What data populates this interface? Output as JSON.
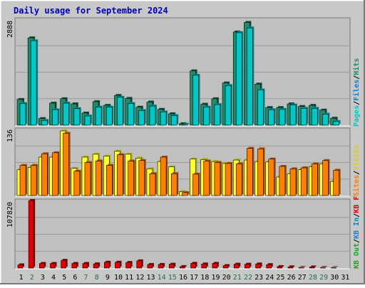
{
  "title": "Daily usage for September 2024",
  "colors": {
    "background": "#c8c8c8",
    "border_light": "#ffffff",
    "border_dark": "#7a7a7a",
    "plot_bg": "#c0c0c0",
    "grid": "#9a9a9a",
    "title": "#0000b4",
    "pages": "#00c8c8",
    "pages_side": "#008a8a",
    "files": "#1080d0",
    "hits": "#208a6a",
    "visits": "#ffff30",
    "visits_side": "#b0b000",
    "sites": "#ff8000",
    "sites_side": "#a05000",
    "kbf": "#e00000",
    "kbf_side": "#800000",
    "kbin": "#1080d0",
    "kbout": "#20a020",
    "weekend_label": "#207050",
    "weekday_label": "#000000"
  },
  "chart_data": [
    {
      "type": "bar",
      "panel": "top",
      "y_max_label": "2888",
      "ylim": [
        0,
        2888
      ],
      "legend": [
        "Pages",
        "Files",
        "Hits"
      ],
      "legend_colors": [
        "#00c8c8",
        "#1080d0",
        "#208a6a"
      ],
      "categories": [
        "1",
        "2",
        "3",
        "4",
        "5",
        "6",
        "7",
        "8",
        "9",
        "10",
        "11",
        "12",
        "13",
        "14",
        "15",
        "16",
        "17",
        "18",
        "19",
        "20",
        "21",
        "22",
        "23",
        "24",
        "25",
        "26",
        "27",
        "28",
        "29",
        "30",
        "31"
      ],
      "series": [
        {
          "name": "Hits",
          "values": [
            700,
            2380,
            180,
            600,
            720,
            580,
            330,
            640,
            540,
            810,
            730,
            490,
            630,
            430,
            310,
            40,
            1480,
            570,
            720,
            1150,
            2540,
            2800,
            1120,
            480,
            480,
            580,
            510,
            540,
            410,
            190,
            0
          ]
        },
        {
          "name": "Files",
          "values": [
            0,
            0,
            0,
            0,
            0,
            0,
            0,
            0,
            0,
            0,
            0,
            0,
            0,
            0,
            0,
            0,
            0,
            0,
            0,
            0,
            0,
            0,
            0,
            0,
            0,
            0,
            0,
            0,
            0,
            0,
            0
          ]
        },
        {
          "name": "Pages",
          "values": [
            590,
            2300,
            130,
            420,
            600,
            450,
            250,
            490,
            490,
            760,
            590,
            400,
            520,
            360,
            260,
            25,
            1360,
            490,
            560,
            1080,
            2520,
            2650,
            960,
            420,
            430,
            550,
            460,
            460,
            300,
            100,
            0
          ]
        }
      ]
    },
    {
      "type": "bar",
      "panel": "middle",
      "y_max_label": "136",
      "ylim": [
        0,
        136
      ],
      "legend": [
        "Visits",
        "Sites"
      ],
      "legend_colors": [
        "#ffff30",
        "#ff8000"
      ],
      "categories": [
        "1",
        "2",
        "3",
        "4",
        "5",
        "6",
        "7",
        "8",
        "9",
        "10",
        "11",
        "12",
        "13",
        "14",
        "15",
        "16",
        "17",
        "18",
        "19",
        "20",
        "21",
        "22",
        "23",
        "24",
        "25",
        "26",
        "27",
        "28",
        "29",
        "30",
        "31"
      ],
      "series": [
        {
          "name": "Visits",
          "values": [
            53,
            58,
            79,
            79,
            133,
            56,
            79,
            85,
            81,
            91,
            85,
            77,
            55,
            70,
            59,
            8,
            75,
            74,
            70,
            66,
            73,
            73,
            70,
            69,
            38,
            45,
            53,
            59,
            65,
            29,
            0
          ]
        },
        {
          "name": "Sites",
          "values": [
            62,
            62,
            86,
            88,
            128,
            50,
            68,
            71,
            62,
            84,
            71,
            72,
            45,
            79,
            45,
            6,
            44,
            71,
            68,
            66,
            65,
            97,
            96,
            75,
            60,
            55,
            57,
            65,
            72,
            52,
            0
          ]
        }
      ]
    },
    {
      "type": "bar",
      "panel": "bottom",
      "y_max_label": "107820",
      "ylim": [
        0,
        107820
      ],
      "legend": [
        "KB F",
        "KB In",
        "KB Out"
      ],
      "legend_colors": [
        "#e00000",
        "#1080d0",
        "#20a020"
      ],
      "categories": [
        "1",
        "2",
        "3",
        "4",
        "5",
        "6",
        "7",
        "8",
        "9",
        "10",
        "11",
        "12",
        "13",
        "14",
        "15",
        "16",
        "17",
        "18",
        "19",
        "20",
        "21",
        "22",
        "23",
        "24",
        "25",
        "26",
        "27",
        "28",
        "29",
        "30",
        "31"
      ],
      "series": [
        {
          "name": "KB F",
          "values": [
            5200,
            107820,
            7400,
            7400,
            12400,
            7400,
            7400,
            6800,
            9400,
            9400,
            9000,
            11600,
            5800,
            5800,
            6200,
            2400,
            7600,
            6600,
            7600,
            4000,
            6200,
            6200,
            6600,
            5500,
            2400,
            2000,
            1000,
            1800,
            1000,
            800,
            0
          ]
        }
      ]
    }
  ],
  "x_labels": [
    {
      "day": "1",
      "weekend": false
    },
    {
      "day": "2",
      "weekend": true
    },
    {
      "day": "3",
      "weekend": false
    },
    {
      "day": "4",
      "weekend": false
    },
    {
      "day": "5",
      "weekend": false
    },
    {
      "day": "6",
      "weekend": false
    },
    {
      "day": "7",
      "weekend": true
    },
    {
      "day": "8",
      "weekend": true
    },
    {
      "day": "9",
      "weekend": false
    },
    {
      "day": "10",
      "weekend": false
    },
    {
      "day": "11",
      "weekend": false
    },
    {
      "day": "12",
      "weekend": false
    },
    {
      "day": "13",
      "weekend": false
    },
    {
      "day": "14",
      "weekend": true
    },
    {
      "day": "15",
      "weekend": true
    },
    {
      "day": "16",
      "weekend": false
    },
    {
      "day": "17",
      "weekend": false
    },
    {
      "day": "18",
      "weekend": false
    },
    {
      "day": "19",
      "weekend": false
    },
    {
      "day": "20",
      "weekend": false
    },
    {
      "day": "21",
      "weekend": true
    },
    {
      "day": "22",
      "weekend": true
    },
    {
      "day": "23",
      "weekend": false
    },
    {
      "day": "24",
      "weekend": false
    },
    {
      "day": "25",
      "weekend": false
    },
    {
      "day": "26",
      "weekend": false
    },
    {
      "day": "27",
      "weekend": false
    },
    {
      "day": "28",
      "weekend": true
    },
    {
      "day": "29",
      "weekend": true
    },
    {
      "day": "30",
      "weekend": false
    },
    {
      "day": "31",
      "weekend": false
    }
  ]
}
